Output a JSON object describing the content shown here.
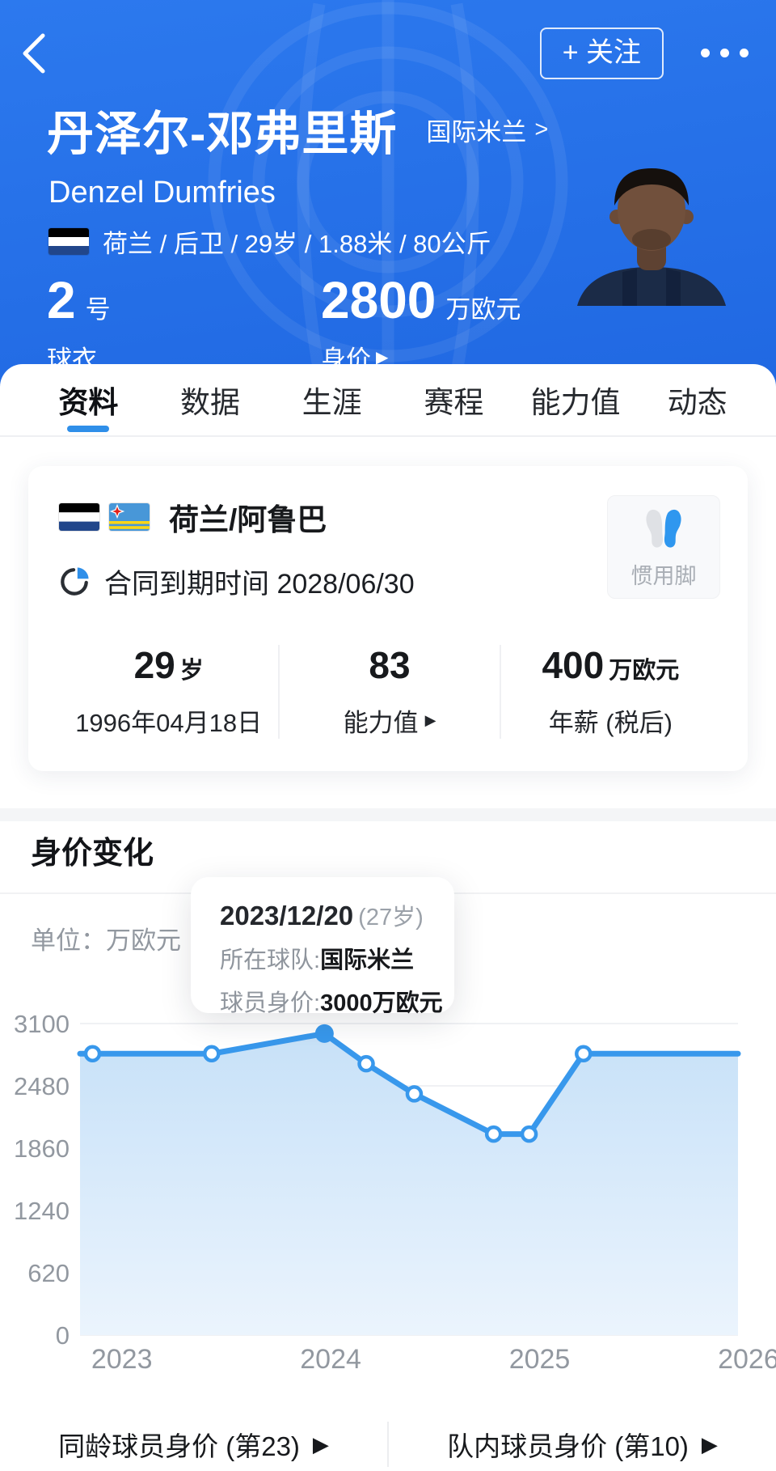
{
  "icons": {
    "chevron_right": ">",
    "arrow_right_small": "▶"
  },
  "header": {
    "follow_label": "+ 关注",
    "name_cn": "丹泽尔-邓弗里斯",
    "team_name": "国际米兰",
    "name_en": "Denzel Dumfries",
    "info_line": "荷兰 / 后卫 / 29岁 / 1.88米 / 80公斤",
    "jersey_number": "2",
    "jersey_suffix": "号",
    "jersey_label": "球衣",
    "market_value": "2800",
    "market_value_unit": "万欧元",
    "market_value_label": "身价"
  },
  "tabs": [
    {
      "label": "资料",
      "active": true
    },
    {
      "label": "数据",
      "active": false
    },
    {
      "label": "生涯",
      "active": false
    },
    {
      "label": "赛程",
      "active": false
    },
    {
      "label": "能力值",
      "active": false
    },
    {
      "label": "动态",
      "active": false
    }
  ],
  "info_card": {
    "nationality": "荷兰/阿鲁巴",
    "contract": "合同到期时间 2028/06/30",
    "preferred_foot_label": "惯用脚",
    "stats": [
      {
        "value": "29",
        "suffix": "岁",
        "label": "1996年04月18日"
      },
      {
        "value": "83",
        "suffix": "",
        "label": "能力值"
      },
      {
        "value": "400",
        "suffix": "万欧元",
        "label": "年薪 (税后)"
      }
    ]
  },
  "value_section": {
    "title": "身价变化",
    "unit_label": "单位：万欧元",
    "tooltip": {
      "date": "2023/12/20",
      "age": "(27岁)",
      "team_label": "所在球队:",
      "team": "国际米兰",
      "value_label": "球员身价:",
      "value": "3000万欧元"
    },
    "footer_links": [
      {
        "label": "同龄球员身价 (第23)"
      },
      {
        "label": "队内球员身价 (第10)"
      }
    ]
  },
  "chart_data": {
    "type": "area",
    "title": "身价变化",
    "ylabel": "万欧元",
    "ylim": [
      0,
      3100
    ],
    "xlim": [
      2022.8,
      2025.95
    ],
    "y_ticks": [
      0,
      620,
      1240,
      1860,
      2480,
      3100
    ],
    "x_ticks": [
      2023,
      2024,
      2025,
      2026
    ],
    "grid": "horizontal",
    "colors": {
      "line": "#3898EC",
      "area_top": "#C7E1F8",
      "area_bottom": "#EBF4FD",
      "grid": "#F0F1F4",
      "axis_text": "#9298A0"
    },
    "points": [
      {
        "x": 2022.86,
        "value": 2800,
        "marker": "open"
      },
      {
        "x": 2023.43,
        "value": 2800,
        "marker": "open"
      },
      {
        "x": 2023.97,
        "value": 3000,
        "marker": "solid",
        "date": "2023/12/20"
      },
      {
        "x": 2024.17,
        "value": 2700,
        "marker": "open"
      },
      {
        "x": 2024.4,
        "value": 2400,
        "marker": "open"
      },
      {
        "x": 2024.78,
        "value": 2000,
        "marker": "open"
      },
      {
        "x": 2024.95,
        "value": 2000,
        "marker": "open"
      },
      {
        "x": 2025.21,
        "value": 2800,
        "marker": "open"
      },
      {
        "x": 2025.95,
        "value": 2800,
        "marker": "none"
      }
    ]
  }
}
